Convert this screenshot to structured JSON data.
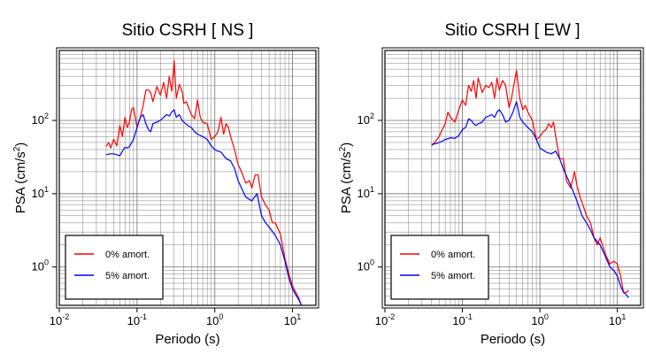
{
  "colors": {
    "series_0": "#ff0000",
    "series_5": "#0000ff",
    "axes": "#000000",
    "grid": "#808080"
  },
  "chart_data": [
    {
      "type": "line",
      "title": "Sitio CSRH [ NS ]",
      "xlabel": "Periodo (s)",
      "ylabel_main": "PSA (cm/s",
      "ylabel_sup": "2",
      "ylabel_end": ")",
      "x_scale": "log",
      "y_scale": "log",
      "xlim": [
        0.01,
        20
      ],
      "ylim": [
        0.3,
        900
      ],
      "x_ticks": [
        {
          "value": 0.01,
          "base": "10",
          "exp": "-2"
        },
        {
          "value": 0.1,
          "base": "10",
          "exp": "-1"
        },
        {
          "value": 1,
          "base": "10",
          "exp": "0"
        },
        {
          "value": 10,
          "base": "10",
          "exp": "1"
        }
      ],
      "y_ticks": [
        {
          "value": 1,
          "base": "10",
          "exp": "0"
        },
        {
          "value": 10,
          "base": "10",
          "exp": "1"
        },
        {
          "value": 100,
          "base": "10",
          "exp": "2"
        }
      ],
      "grid": true,
      "legend_position": "bottom-left",
      "series": [
        {
          "name": "0% amort.",
          "color": "#ff0000",
          "x": [
            0.04,
            0.043,
            0.046,
            0.05,
            0.055,
            0.06,
            0.065,
            0.07,
            0.075,
            0.08,
            0.085,
            0.09,
            0.1,
            0.11,
            0.12,
            0.13,
            0.14,
            0.15,
            0.16,
            0.18,
            0.2,
            0.22,
            0.24,
            0.26,
            0.28,
            0.3,
            0.32,
            0.35,
            0.38,
            0.4,
            0.43,
            0.46,
            0.5,
            0.55,
            0.6,
            0.65,
            0.7,
            0.8,
            0.9,
            1.0,
            1.1,
            1.2,
            1.3,
            1.4,
            1.5,
            1.6,
            1.8,
            2.0,
            2.2,
            2.5,
            2.8,
            3.0,
            3.3,
            3.6,
            4.0,
            4.5,
            5.0,
            5.5,
            6.0,
            7.0,
            8.0,
            9.0,
            10.0,
            11.0,
            12.0,
            13.0
          ],
          "y": [
            44,
            50,
            42,
            55,
            45,
            85,
            60,
            110,
            80,
            95,
            140,
            150,
            80,
            110,
            160,
            260,
            260,
            240,
            180,
            290,
            220,
            330,
            200,
            400,
            250,
            650,
            200,
            310,
            250,
            170,
            180,
            150,
            120,
            105,
            190,
            110,
            95,
            90,
            55,
            60,
            70,
            110,
            65,
            90,
            80,
            60,
            40,
            25,
            20,
            14,
            15,
            12,
            18,
            18,
            9,
            7,
            6,
            4,
            4,
            2.8,
            1.3,
            0.8,
            0.55,
            0.45,
            0.38,
            0.3
          ]
        },
        {
          "name": "5% amort.",
          "color": "#0000ff",
          "x": [
            0.04,
            0.045,
            0.05,
            0.055,
            0.06,
            0.065,
            0.07,
            0.075,
            0.08,
            0.09,
            0.1,
            0.11,
            0.12,
            0.13,
            0.14,
            0.15,
            0.16,
            0.18,
            0.2,
            0.22,
            0.24,
            0.26,
            0.28,
            0.3,
            0.32,
            0.35,
            0.38,
            0.4,
            0.45,
            0.5,
            0.55,
            0.6,
            0.7,
            0.8,
            0.9,
            1.0,
            1.1,
            1.2,
            1.4,
            1.6,
            1.8,
            2.0,
            2.5,
            3.0,
            3.5,
            4.0,
            4.5,
            5.0,
            6.0,
            7.0,
            8.0,
            9.0,
            10.0,
            11.0,
            12.0,
            13.0
          ],
          "y": [
            34,
            35,
            35,
            34,
            33,
            38,
            43,
            42,
            44,
            55,
            80,
            110,
            120,
            90,
            75,
            70,
            90,
            95,
            100,
            110,
            120,
            115,
            130,
            140,
            110,
            120,
            100,
            95,
            85,
            80,
            70,
            65,
            60,
            55,
            45,
            40,
            38,
            37,
            30,
            28,
            22,
            15,
            9,
            8,
            10,
            5,
            4,
            3.5,
            2.7,
            2.0,
            1.2,
            0.7,
            0.5,
            0.42,
            0.36,
            0.3
          ]
        }
      ]
    },
    {
      "type": "line",
      "title": "Sitio CSRH [ EW ]",
      "xlabel": "Periodo (s)",
      "ylabel_main": "PSA (cm/s",
      "ylabel_sup": "2",
      "ylabel_end": ")",
      "x_scale": "log",
      "y_scale": "log",
      "xlim": [
        0.01,
        20
      ],
      "ylim": [
        0.3,
        900
      ],
      "x_ticks": [
        {
          "value": 0.01,
          "base": "10",
          "exp": "-2"
        },
        {
          "value": 0.1,
          "base": "10",
          "exp": "-1"
        },
        {
          "value": 1,
          "base": "10",
          "exp": "0"
        },
        {
          "value": 10,
          "base": "10",
          "exp": "1"
        }
      ],
      "y_ticks": [
        {
          "value": 1,
          "base": "10",
          "exp": "0"
        },
        {
          "value": 10,
          "base": "10",
          "exp": "1"
        },
        {
          "value": 100,
          "base": "10",
          "exp": "2"
        }
      ],
      "grid": true,
      "legend_position": "bottom-left",
      "series": [
        {
          "name": "0% amort.",
          "color": "#ff0000",
          "x": [
            0.04,
            0.045,
            0.05,
            0.055,
            0.06,
            0.065,
            0.07,
            0.08,
            0.09,
            0.1,
            0.11,
            0.12,
            0.13,
            0.14,
            0.15,
            0.16,
            0.18,
            0.2,
            0.22,
            0.24,
            0.26,
            0.28,
            0.3,
            0.33,
            0.36,
            0.4,
            0.43,
            0.46,
            0.5,
            0.55,
            0.6,
            0.65,
            0.7,
            0.8,
            0.9,
            1.0,
            1.1,
            1.2,
            1.3,
            1.4,
            1.5,
            1.6,
            1.8,
            2.0,
            2.2,
            2.5,
            2.8,
            3.0,
            3.3,
            3.6,
            4.0,
            4.5,
            5.0,
            5.5,
            6.0,
            7.0,
            8.0,
            9.0,
            10.0,
            11.0,
            12.0,
            13.0,
            14.0
          ],
          "y": [
            45,
            52,
            60,
            75,
            90,
            130,
            110,
            95,
            140,
            190,
            160,
            300,
            250,
            350,
            200,
            380,
            240,
            300,
            280,
            330,
            200,
            380,
            260,
            350,
            300,
            150,
            200,
            300,
            480,
            200,
            140,
            160,
            130,
            100,
            55,
            60,
            70,
            75,
            90,
            80,
            95,
            60,
            30,
            30,
            15,
            12,
            20,
            13,
            9,
            7,
            5,
            4,
            2.5,
            2.0,
            2.5,
            1.5,
            1.1,
            1.2,
            1.1,
            0.75,
            0.45,
            0.45,
            0.48
          ]
        },
        {
          "name": "5% amort.",
          "color": "#0000ff",
          "x": [
            0.04,
            0.045,
            0.05,
            0.055,
            0.06,
            0.065,
            0.07,
            0.08,
            0.09,
            0.1,
            0.11,
            0.12,
            0.13,
            0.14,
            0.15,
            0.16,
            0.18,
            0.2,
            0.22,
            0.24,
            0.26,
            0.28,
            0.3,
            0.33,
            0.36,
            0.4,
            0.45,
            0.5,
            0.55,
            0.6,
            0.7,
            0.8,
            0.9,
            1.0,
            1.2,
            1.4,
            1.6,
            1.8,
            2.0,
            2.5,
            3.0,
            3.5,
            4.0,
            4.5,
            5.0,
            6.0,
            7.0,
            8.0,
            9.0,
            10.0,
            11.0,
            12.0,
            13.0,
            14.0
          ],
          "y": [
            47,
            48,
            50,
            52,
            55,
            56,
            58,
            57,
            62,
            75,
            80,
            105,
            100,
            90,
            85,
            90,
            95,
            110,
            115,
            120,
            110,
            130,
            140,
            120,
            95,
            100,
            130,
            180,
            110,
            95,
            80,
            70,
            55,
            42,
            37,
            35,
            38,
            30,
            22,
            13,
            8,
            5,
            4,
            3.2,
            2.5,
            2.0,
            1.4,
            1.0,
            0.9,
            0.75,
            0.55,
            0.45,
            0.42,
            0.38
          ]
        }
      ]
    }
  ]
}
